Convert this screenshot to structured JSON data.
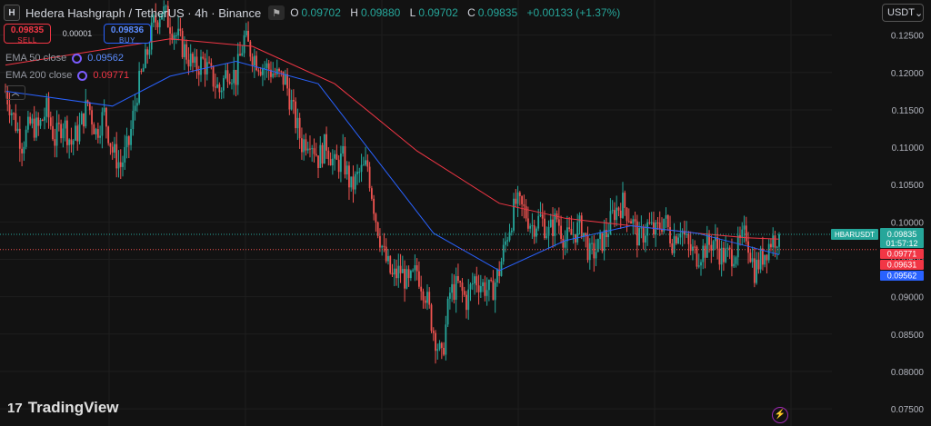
{
  "header": {
    "logo": "H",
    "title": "Hedera Hashgraph / TetherUS · 4h · Binance",
    "flag_icon": "flag-icon",
    "ohlc": {
      "o_label": "O",
      "o_value": "0.09702",
      "h_label": "H",
      "h_value": "0.09880",
      "l_label": "L",
      "l_value": "0.09702",
      "c_label": "C",
      "c_value": "0.09835",
      "change": "+0.00133 (+1.37%)"
    }
  },
  "trade": {
    "sell_price": "0.09835",
    "sell_label": "SELL",
    "spread": "0.00001",
    "buy_price": "0.09836",
    "buy_label": "BUY"
  },
  "indicators": {
    "ema50_label": "EMA 50 close",
    "ema50_value": "0.09562",
    "ema200_label": "EMA 200 close",
    "ema200_value": "0.09771",
    "collapse_icon": "chevron-up-icon"
  },
  "currency_select": {
    "label": "USDT",
    "icon": "chevron-down-icon"
  },
  "branding": {
    "name": "TradingView"
  },
  "colors": {
    "background": "#121212",
    "up": "#26a69a",
    "down": "#ef5350",
    "ema50": "#2962ff",
    "ema200": "#f23645",
    "grid": "#1e1e1e"
  },
  "chart_data": {
    "type": "candlestick",
    "symbol": "HBARUSDT",
    "interval": "4h",
    "exchange": "Binance",
    "y_ticks": [
      "0.12500",
      "0.12000",
      "0.11500",
      "0.11000",
      "0.10500",
      "0.10000",
      "0.09500",
      "0.09000",
      "0.08500",
      "0.08000",
      "0.07500"
    ],
    "ylim": [
      0.0727,
      0.1297
    ],
    "grid": true,
    "price_labels": [
      {
        "label": "HBARUSDT",
        "value": "0.09835",
        "sub": "01:57:12",
        "color": "#26a69a"
      },
      {
        "value": "0.09771",
        "color": "#f23645"
      },
      {
        "value": "0.09631",
        "color": "#f23645"
      },
      {
        "value": "0.09562",
        "color": "#2962ff"
      }
    ],
    "close_series": [
      0.1175,
      0.114,
      0.1105,
      0.113,
      0.1125,
      0.115,
      0.111,
      0.1135,
      0.1105,
      0.1125,
      0.116,
      0.112,
      0.1145,
      0.1095,
      0.1075,
      0.1105,
      0.1175,
      0.1215,
      0.1265,
      0.1285,
      0.1265,
      0.1245,
      0.1225,
      0.1205,
      0.1215,
      0.1195,
      0.1175,
      0.1205,
      0.1195,
      0.1245,
      0.1225,
      0.121,
      0.1205,
      0.1195,
      0.119,
      0.1145,
      0.1105,
      0.1115,
      0.1085,
      0.1105,
      0.1075,
      0.1085,
      0.1045,
      0.1065,
      0.1075,
      0.1005,
      0.0955,
      0.0925,
      0.0935,
      0.0915,
      0.0935,
      0.0905,
      0.0855,
      0.0815,
      0.0905,
      0.0915,
      0.0895,
      0.0925,
      0.0915,
      0.0905,
      0.0935,
      0.0985,
      0.1025,
      0.1015,
      0.0995,
      0.1005,
      0.0985,
      0.1005,
      0.0975,
      0.0985,
      0.0995,
      0.0955,
      0.0965,
      0.0985,
      0.1015,
      0.1025,
      0.1005,
      0.0975,
      0.0995,
      0.0985,
      0.1005,
      0.0975,
      0.0995,
      0.0965,
      0.0955,
      0.0965,
      0.0975,
      0.0955,
      0.0955,
      0.0965,
      0.0985,
      0.0935,
      0.0955,
      0.0975,
      0.09835
    ],
    "ema50": [
      [
        0,
        0.1175
      ],
      [
        13,
        0.1155
      ],
      [
        20,
        0.1195
      ],
      [
        28,
        0.1215
      ],
      [
        38,
        0.1185
      ],
      [
        45,
        0.1085
      ],
      [
        52,
        0.0985
      ],
      [
        60,
        0.0935
      ],
      [
        68,
        0.0975
      ],
      [
        76,
        0.0995
      ],
      [
        84,
        0.0985
      ],
      [
        90,
        0.0968
      ],
      [
        94,
        0.09562
      ]
    ],
    "ema200": [
      [
        0,
        0.121
      ],
      [
        20,
        0.1245
      ],
      [
        30,
        0.1235
      ],
      [
        40,
        0.1185
      ],
      [
        50,
        0.1095
      ],
      [
        60,
        0.1025
      ],
      [
        68,
        0.1005
      ],
      [
        76,
        0.0995
      ],
      [
        84,
        0.0985
      ],
      [
        90,
        0.0979
      ],
      [
        94,
        0.09771
      ]
    ]
  }
}
